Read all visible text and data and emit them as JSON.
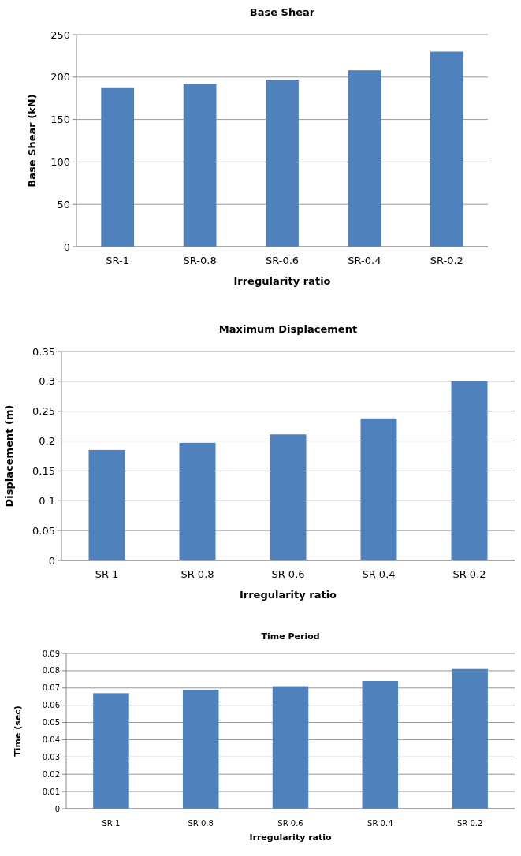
{
  "chart_data": [
    {
      "type": "bar",
      "title": "Base Shear",
      "xlabel": "Irregularity ratio",
      "ylabel": "Base Shear  (kN)",
      "categories": [
        "SR-1",
        "SR-0.8",
        "SR-0.6",
        "SR-0.4",
        "SR-0.2"
      ],
      "values": [
        187,
        192,
        197,
        208,
        230
      ],
      "color": "#4f81bd",
      "ylim": [
        0,
        250
      ],
      "yticks": [
        0,
        50,
        100,
        150,
        200,
        250
      ],
      "grid": "y"
    },
    {
      "type": "bar",
      "title": "Maximum Displacement",
      "xlabel": "Irregularity ratio",
      "ylabel": "Displacement  (m)",
      "categories": [
        "SR 1",
        "SR 0.8",
        "SR 0.6",
        "SR 0.4",
        "SR 0.2"
      ],
      "values": [
        0.185,
        0.197,
        0.211,
        0.238,
        0.3
      ],
      "color": "#4f81bd",
      "ylim": [
        0,
        0.35
      ],
      "yticks": [
        0,
        0.05,
        0.1,
        0.15,
        0.2,
        0.25,
        0.3,
        0.35
      ],
      "grid": "y"
    },
    {
      "type": "bar",
      "title": "Time Period",
      "xlabel": "Irregularity ratio",
      "ylabel": "Time (sec)",
      "categories": [
        "SR-1",
        "SR-0.8",
        "SR-0.6",
        "SR-0.4",
        "SR-0.2"
      ],
      "values": [
        0.067,
        0.069,
        0.071,
        0.074,
        0.081
      ],
      "color": "#4f81bd",
      "ylim": [
        0,
        0.09
      ],
      "yticks": [
        0,
        0.01,
        0.02,
        0.03,
        0.04,
        0.05,
        0.06,
        0.07,
        0.08,
        0.09
      ],
      "grid": "y"
    }
  ]
}
